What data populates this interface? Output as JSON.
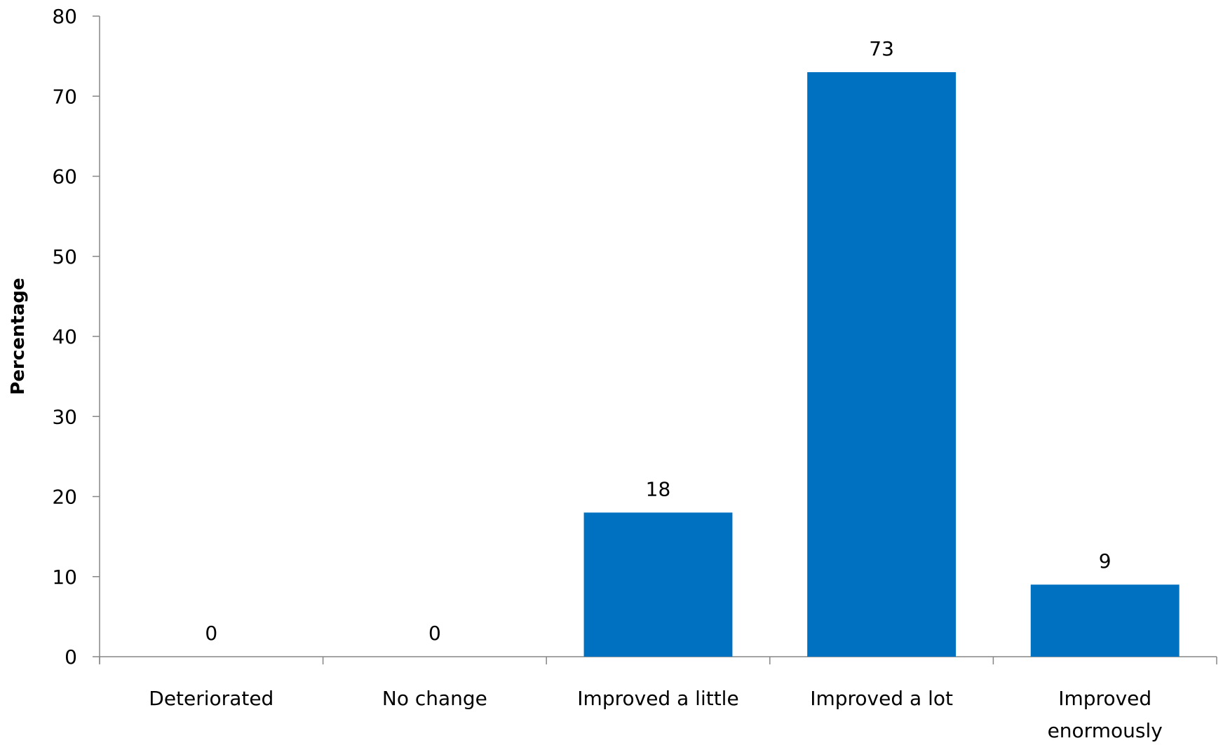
{
  "chart_data": {
    "type": "bar",
    "title": "",
    "xlabel": "",
    "ylabel": "Percentage",
    "ylim": [
      0,
      80
    ],
    "yticks": [
      0,
      10,
      20,
      30,
      40,
      50,
      60,
      70,
      80
    ],
    "categories": [
      "Deteriorated",
      "No change",
      "Improved a little",
      "Improved a lot",
      "Improved enormously"
    ],
    "category_lines": [
      [
        "Deteriorated"
      ],
      [
        "No change"
      ],
      [
        "Improved a little"
      ],
      [
        "Improved a lot"
      ],
      [
        "Improved",
        "enormously"
      ]
    ],
    "values": [
      0,
      0,
      18,
      73,
      9
    ],
    "data_labels": [
      "0",
      "0",
      "18",
      "73",
      "9"
    ],
    "bar_color": "#0070C0",
    "axis_color": "#868686",
    "grid": false,
    "legend": "none"
  }
}
